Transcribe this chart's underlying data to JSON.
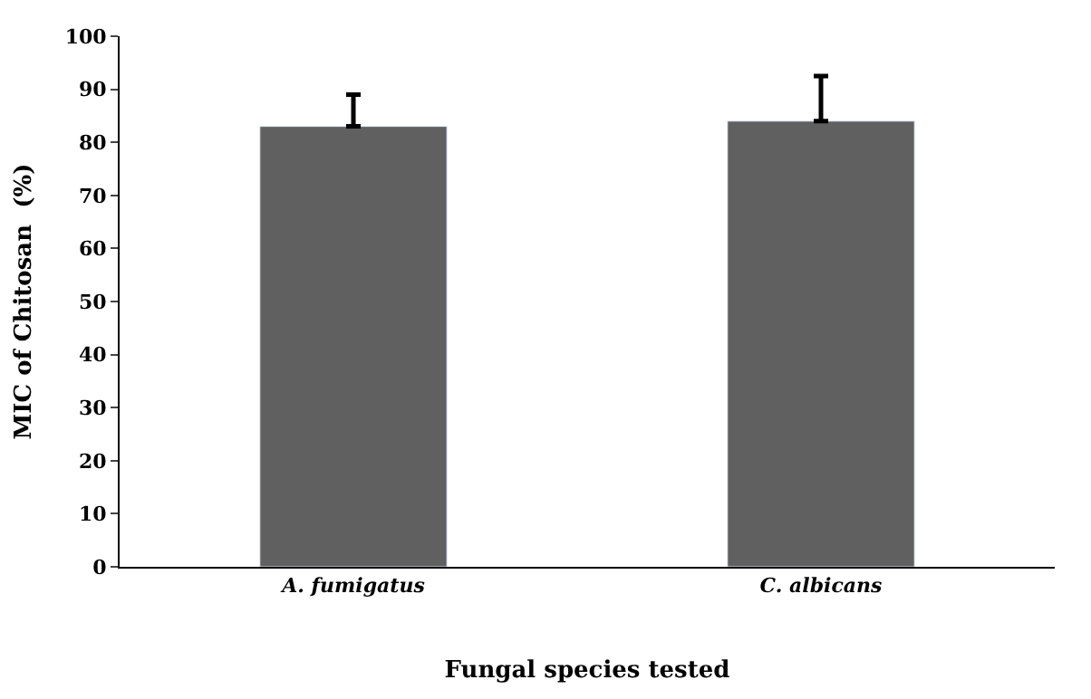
{
  "chart_data": {
    "type": "bar",
    "xlabel": "Fungal species tested",
    "ylabel": "MIC of Chitosan  (%)",
    "categories": [
      "A. fumigatus",
      "C. albicans"
    ],
    "values": [
      83,
      84
    ],
    "errors": [
      [
        83,
        89
      ],
      [
        84,
        92.5
      ]
    ],
    "color": "#606060",
    "ylim": [
      0,
      100
    ],
    "yticks": [
      0,
      10,
      20,
      30,
      40,
      50,
      60,
      70,
      80,
      90,
      100
    ],
    "legend": false
  }
}
